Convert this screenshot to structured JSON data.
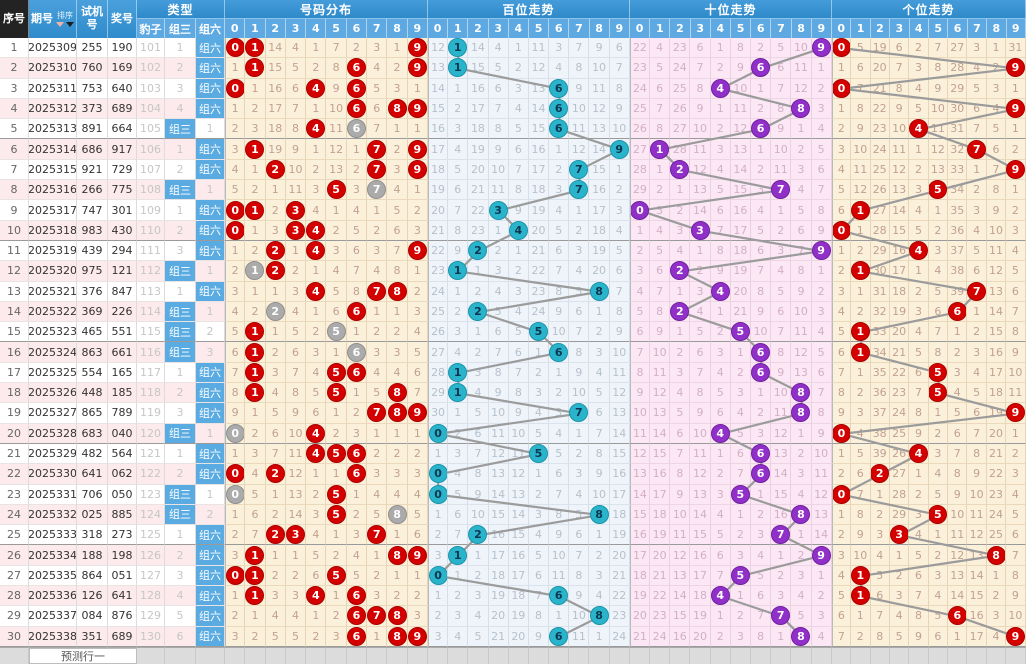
{
  "header": {
    "seq": "序号",
    "period": "期号",
    "sort": "排序",
    "test": "试机号",
    "prize": "奖号",
    "type_group": "类型",
    "baozi": "豹子",
    "zusan": "组三",
    "zuliu": "组六",
    "sections": [
      {
        "id": "dist",
        "title": "号码分布"
      },
      {
        "id": "bai",
        "title": "百位走势"
      },
      {
        "id": "shi",
        "title": "十位走势"
      },
      {
        "id": "ge",
        "title": "个位走势"
      }
    ],
    "digits": [
      "0",
      "1",
      "2",
      "3",
      "4",
      "5",
      "6",
      "7",
      "8",
      "9"
    ]
  },
  "footer": {
    "label": "预测行一"
  },
  "colors": {
    "header_blue": "#3e96d8",
    "digit_header_blue": "#5ea9e2",
    "seq_header_black": "#232323",
    "badge_blue": "#5aabe2",
    "ball_red": "#d40000",
    "ball_gray": "#ababab",
    "ball_teal": "#2ab4cb",
    "ball_purple": "#9130c8",
    "trend_line_gray": "#9b9b9b",
    "row_pink": "#fdeaec",
    "dist_bg": "#fbf0da",
    "bai_bg": "#eef4f9",
    "shi_bg": "#fbe8f4"
  },
  "chart_data": {
    "type": "table",
    "rows": [
      {
        "seq": "1",
        "period": "2025309",
        "test": "255",
        "prize": "190",
        "baozi": "101",
        "zusan": "1",
        "zuliu": "组六",
        "dist": "R0 R1 14 4 1 7 2 3 1 R9",
        "bai": "12 B1 14 4 1 11 3 7 9 6",
        "shi": "22 4 23 6 1 8 2 5 10 B9",
        "ge": "B0 5 19 6 2 7 27 3 1 31"
      },
      {
        "seq": "2",
        "period": "2025310",
        "test": "760",
        "prize": "169",
        "baozi": "102",
        "zusan": "2",
        "zuliu": "组六",
        "dist": "1 R1 15 5 2 8 R6 4 2 R9",
        "bai": "13 B1 15 5 2 12 4 8 10 7",
        "shi": "23 5 24 7 2 9 B6 6 11 1",
        "ge": "1 6 20 7 3 8 28 4 2 B9"
      },
      {
        "seq": "3",
        "period": "2025311",
        "test": "753",
        "prize": "640",
        "baozi": "103",
        "zusan": "3",
        "zuliu": "组六",
        "dist": "R0 1 16 6 R4 9 R6 5 3 1",
        "bai": "14 1 16 6 3 13 B6 9 11 8",
        "shi": "24 6 25 8 B4 10 1 7 12 2",
        "ge": "B0 7 21 8 4 9 29 5 3 1"
      },
      {
        "seq": "4",
        "period": "2025312",
        "test": "373",
        "prize": "689",
        "baozi": "104",
        "zusan": "4",
        "zuliu": "组六",
        "dist": "1 2 17 7 1 10 R6 6 R8 R9",
        "bai": "15 2 17 7 4 14 B6 10 12 9",
        "shi": "25 7 26 9 1 11 2 8 B8 3",
        "ge": "1 8 22 9 5 10 30 6 4 B9"
      },
      {
        "seq": "5",
        "period": "2025313",
        "test": "891",
        "prize": "664",
        "baozi": "105",
        "zusan": "组三",
        "zuliu": "1",
        "dist": "2 3 18 8 R4 11 G6 7 1 1",
        "bai": "16 3 18 8 5 15 B6 11 13 10",
        "shi": "26 8 27 10 2 12 B6 9 1 4",
        "ge": "2 9 23 10 B4 11 31 7 5 1"
      },
      {
        "seq": "6",
        "period": "2025314",
        "test": "686",
        "prize": "917",
        "baozi": "106",
        "zusan": "1",
        "zuliu": "组六",
        "dist": "3 R1 19 9 1 12 1 R7 2 R9",
        "bai": "17 4 19 9 6 16 1 12 14 B9",
        "shi": "27 B1 28 11 3 13 1 10 2 5",
        "ge": "3 10 24 11 1 12 32 B7 6 2"
      },
      {
        "seq": "7",
        "period": "2025315",
        "test": "921",
        "prize": "729",
        "baozi": "107",
        "zusan": "2",
        "zuliu": "组六",
        "dist": "4 1 R2 10 2 13 2 R7 3 R9",
        "bai": "18 5 20 10 7 17 2 B7 15 1",
        "shi": "28 1 B2 12 4 14 2 11 3 6",
        "ge": "4 11 25 12 2 13 33 1 7 B9"
      },
      {
        "seq": "8",
        "period": "2025316",
        "test": "266",
        "prize": "775",
        "baozi": "108",
        "zusan": "组三",
        "zuliu": "1",
        "dist": "5 2 1 11 3 R5 3 G7 4 1",
        "bai": "19 6 21 11 8 18 3 B7 16 2",
        "shi": "29 2 1 13 5 15 3 B7 4 7",
        "ge": "5 12 26 13 3 B5 34 2 8 1"
      },
      {
        "seq": "9",
        "period": "2025317",
        "test": "747",
        "prize": "301",
        "baozi": "109",
        "zusan": "1",
        "zuliu": "组六",
        "dist": "R0 R1 2 R3 4 1 4 1 5 2",
        "bai": "20 7 22 B3 9 19 4 1 17 3",
        "shi": "B0 3 2 14 6 16 4 1 5 8",
        "ge": "6 B1 27 14 4 1 35 3 9 2"
      },
      {
        "seq": "10",
        "period": "2025318",
        "test": "983",
        "prize": "430",
        "baozi": "110",
        "zusan": "2",
        "zuliu": "组六",
        "dist": "R0 1 3 R3 R4 2 5 2 6 3",
        "bai": "21 8 23 1 B4 20 5 2 18 4",
        "shi": "1 4 3 B3 7 17 5 2 6 9",
        "ge": "B0 1 28 15 5 2 36 4 10 3"
      },
      {
        "seq": "11",
        "period": "2025319",
        "test": "439",
        "prize": "294",
        "baozi": "111",
        "zusan": "3",
        "zuliu": "组六",
        "dist": "1 2 R2 1 R4 3 6 3 7 R9",
        "bai": "22 9 B2 2 1 21 6 3 19 5",
        "shi": "2 5 4 1 8 18 6 3 7 B9",
        "ge": "1 2 29 16 B4 3 37 5 11 4"
      },
      {
        "seq": "12",
        "period": "2025320",
        "test": "975",
        "prize": "121",
        "baozi": "112",
        "zusan": "组三",
        "zuliu": "1",
        "dist": "2 G1 R2 2 1 4 7 4 8 1",
        "bai": "23 B1 1 3 2 22 7 4 20 6",
        "shi": "3 6 B2 2 9 19 7 4 8 1",
        "ge": "2 B1 30 17 1 4 38 6 12 5"
      },
      {
        "seq": "13",
        "period": "2025321",
        "test": "376",
        "prize": "847",
        "baozi": "113",
        "zusan": "1",
        "zuliu": "组六",
        "dist": "3 1 1 3 R4 5 8 R7 R8 2",
        "bai": "24 1 2 4 3 23 8 5 B8 7",
        "shi": "4 7 1 3 B4 20 8 5 9 2",
        "ge": "3 1 31 18 2 5 39 B7 13 6"
      },
      {
        "seq": "14",
        "period": "2025322",
        "test": "369",
        "prize": "226",
        "baozi": "114",
        "zusan": "组三",
        "zuliu": "1",
        "dist": "4 2 G2 4 1 6 R6 1 1 3",
        "bai": "25 2 B2 5 4 24 9 6 1 8",
        "shi": "5 8 B2 4 1 21 9 6 10 3",
        "ge": "4 2 32 19 3 6 B6 1 14 7"
      },
      {
        "seq": "15",
        "period": "2025323",
        "test": "465",
        "prize": "551",
        "baozi": "115",
        "zusan": "组三",
        "zuliu": "2",
        "dist": "5 R1 1 5 2 G5 1 2 2 4",
        "bai": "26 3 1 6 5 B5 10 7 2 9",
        "shi": "6 9 1 5 2 B5 10 7 11 4",
        "ge": "5 B1 33 20 4 7 1 2 15 8"
      },
      {
        "seq": "16",
        "period": "2025324",
        "test": "863",
        "prize": "661",
        "baozi": "116",
        "zusan": "组三",
        "zuliu": "3",
        "dist": "6 R1 2 6 3 1 G6 3 3 5",
        "bai": "27 4 2 7 6 1 B6 8 3 10",
        "shi": "7 10 2 6 3 1 B6 8 12 5",
        "ge": "6 B1 34 21 5 8 2 3 16 9"
      },
      {
        "seq": "17",
        "period": "2025325",
        "test": "554",
        "prize": "165",
        "baozi": "117",
        "zusan": "1",
        "zuliu": "组六",
        "dist": "7 R1 3 7 4 R5 R6 4 4 6",
        "bai": "28 B1 3 8 7 2 1 9 4 11",
        "shi": "8 11 3 7 4 2 B6 9 13 6",
        "ge": "7 1 35 22 6 B5 3 4 17 10"
      },
      {
        "seq": "18",
        "period": "2025326",
        "test": "448",
        "prize": "185",
        "baozi": "118",
        "zusan": "2",
        "zuliu": "组六",
        "dist": "8 R1 4 8 5 R5 1 5 R8 7",
        "bai": "29 B1 4 9 8 3 2 10 5 12",
        "shi": "9 12 4 8 5 3 1 10 B8 7",
        "ge": "8 2 36 23 7 B5 4 5 18 11"
      },
      {
        "seq": "19",
        "period": "2025327",
        "test": "865",
        "prize": "789",
        "baozi": "119",
        "zusan": "3",
        "zuliu": "组六",
        "dist": "9 1 5 9 6 1 2 R7 R8 R9",
        "bai": "30 1 5 10 9 4 3 B7 6 13",
        "shi": "10 13 5 9 6 4 2 11 B8 8",
        "ge": "9 3 37 24 8 1 5 6 19 B9"
      },
      {
        "seq": "20",
        "period": "2025328",
        "test": "683",
        "prize": "040",
        "baozi": "120",
        "zusan": "组三",
        "zuliu": "1",
        "dist": "G0 2 6 10 R4 2 3 1 1 1",
        "bai": "B0 2 6 11 10 5 4 1 7 14",
        "shi": "11 14 6 10 B4 5 3 12 1 9",
        "ge": "B0 4 38 25 9 2 6 7 20 1"
      },
      {
        "seq": "21",
        "period": "2025329",
        "test": "482",
        "prize": "564",
        "baozi": "121",
        "zusan": "1",
        "zuliu": "组六",
        "dist": "1 3 7 11 R4 R5 R6 2 2 2",
        "bai": "1 3 7 12 11 B5 5 2 8 15",
        "shi": "12 15 7 11 1 6 B6 13 2 10",
        "ge": "1 5 39 26 B4 3 7 8 21 2"
      },
      {
        "seq": "22",
        "period": "2025330",
        "test": "641",
        "prize": "062",
        "baozi": "122",
        "zusan": "2",
        "zuliu": "组六",
        "dist": "R0 4 R2 12 1 1 R6 3 3 3",
        "bai": "B0 4 8 13 12 1 6 3 9 16",
        "shi": "13 16 8 12 2 7 B6 14 3 11",
        "ge": "2 6 B2 27 1 4 8 9 22 3"
      },
      {
        "seq": "23",
        "period": "2025331",
        "test": "706",
        "prize": "050",
        "baozi": "123",
        "zusan": "组三",
        "zuliu": "1",
        "dist": "G0 5 1 13 2 R5 1 4 4 4",
        "bai": "B0 5 9 14 13 2 7 4 10 17",
        "shi": "14 17 9 13 3 B5 1 15 4 12",
        "ge": "B0 7 1 28 2 5 9 10 23 4"
      },
      {
        "seq": "24",
        "period": "2025332",
        "test": "025",
        "prize": "885",
        "baozi": "124",
        "zusan": "组三",
        "zuliu": "2",
        "dist": "1 6 2 14 3 R5 2 5 G8 5",
        "bai": "1 6 10 15 14 3 8 5 B8 18",
        "shi": "15 18 10 14 4 1 2 16 B8 13",
        "ge": "1 8 2 29 3 B5 10 11 24 5"
      },
      {
        "seq": "25",
        "period": "2025333",
        "test": "318",
        "prize": "273",
        "baozi": "125",
        "zusan": "1",
        "zuliu": "组六",
        "dist": "2 7 R2 R3 4 1 3 R7 1 6",
        "bai": "2 7 B2 16 15 4 9 6 1 19",
        "shi": "16 19 11 15 5 2 3 B7 1 14",
        "ge": "2 9 3 B3 4 1 11 12 25 6"
      },
      {
        "seq": "26",
        "period": "2025334",
        "test": "188",
        "prize": "198",
        "baozi": "126",
        "zusan": "2",
        "zuliu": "组六",
        "dist": "3 R1 1 1 5 2 4 1 R8 R9",
        "bai": "3 B1 1 17 16 5 10 7 2 20",
        "shi": "17 20 12 16 6 3 4 1 2 B9",
        "ge": "3 10 4 1 5 2 12 13 B8 7"
      },
      {
        "seq": "27",
        "period": "2025335",
        "test": "864",
        "prize": "051",
        "baozi": "127",
        "zusan": "3",
        "zuliu": "组六",
        "dist": "R0 R1 2 2 6 R5 5 2 1 1",
        "bai": "B0 1 2 18 17 6 11 8 3 21",
        "shi": "18 21 13 17 7 B5 5 2 3 1",
        "ge": "4 B1 5 2 6 3 13 14 1 8"
      },
      {
        "seq": "28",
        "period": "2025336",
        "test": "126",
        "prize": "641",
        "baozi": "128",
        "zusan": "4",
        "zuliu": "组六",
        "dist": "1 R1 3 3 R4 1 R6 3 2 2",
        "bai": "1 2 3 19 18 7 B6 9 4 22",
        "shi": "19 22 14 18 B4 1 6 3 4 2",
        "ge": "5 B1 6 3 7 4 14 15 2 9"
      },
      {
        "seq": "29",
        "period": "2025337",
        "test": "084",
        "prize": "876",
        "baozi": "129",
        "zusan": "5",
        "zuliu": "组六",
        "dist": "2 1 4 4 1 2 R6 R7 R8 3",
        "bai": "2 3 4 20 19 8 1 10 B8 23",
        "shi": "20 23 15 19 1 2 7 B7 5 3",
        "ge": "6 1 7 4 8 5 B6 16 3 10"
      },
      {
        "seq": "30",
        "period": "2025338",
        "test": "351",
        "prize": "689",
        "baozi": "130",
        "zusan": "6",
        "zuliu": "组六",
        "dist": "3 2 5 5 2 3 R6 1 R8 R9",
        "bai": "3 4 5 21 20 9 B6 11 1 24",
        "shi": "21 24 16 20 2 3 8 1 B8 4",
        "ge": "7 2 8 5 9 6 1 17 4 B9"
      }
    ]
  }
}
